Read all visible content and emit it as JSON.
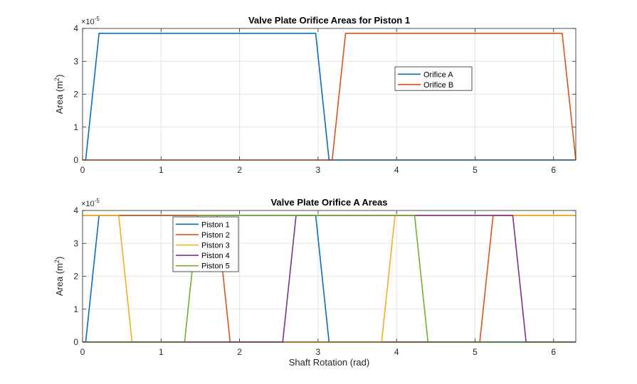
{
  "window": {},
  "chart_data": [
    {
      "type": "line",
      "title": "Valve Plate Orifice Areas for Piston 1",
      "xlabel": "",
      "ylabel": "Area  (m",
      "ylabel_sup": "2",
      "ylabel_tail": ")",
      "exponent_label": "×10",
      "exponent_power": "-5",
      "xlim": [
        0,
        6.2832
      ],
      "ylim": [
        0,
        4
      ],
      "xticks": [
        0,
        1,
        2,
        3,
        4,
        5,
        6
      ],
      "yticks": [
        0,
        1,
        2,
        3,
        4
      ],
      "grid": true,
      "legend_position": "upper-right-inside",
      "series": [
        {
          "name": "Orifice A",
          "color": "#0072BD",
          "x": [
            0,
            0.04,
            0.21,
            2.97,
            3.14,
            6.2832
          ],
          "y": [
            0,
            0,
            3.85,
            3.85,
            0,
            0
          ]
        },
        {
          "name": "Orifice B",
          "color": "#D95319",
          "x": [
            0,
            3.18,
            3.35,
            6.11,
            6.2832
          ],
          "y": [
            0,
            0,
            3.85,
            3.85,
            0
          ]
        }
      ]
    },
    {
      "type": "line",
      "title": "Valve Plate Orifice A Areas",
      "xlabel": "Shaft Rotation (rad)",
      "ylabel": "Area  (m",
      "ylabel_sup": "2",
      "ylabel_tail": ")",
      "exponent_label": "×10",
      "exponent_power": "-5",
      "xlim": [
        0,
        6.2832
      ],
      "ylim": [
        0,
        4
      ],
      "xticks": [
        0,
        1,
        2,
        3,
        4,
        5,
        6
      ],
      "yticks": [
        0,
        1,
        2,
        3,
        4
      ],
      "grid": true,
      "legend_position": "upper-left-inside",
      "series": [
        {
          "name": "Piston 1",
          "color": "#0072BD",
          "x": [
            0,
            0.04,
            0.21,
            2.97,
            3.14,
            6.2832
          ],
          "y": [
            0,
            0,
            3.85,
            3.85,
            0,
            0
          ]
        },
        {
          "name": "Piston 2",
          "color": "#D95319",
          "x": [
            0,
            1.71,
            1.88,
            5.06,
            5.23,
            6.2832
          ],
          "y": [
            3.85,
            3.85,
            0,
            0,
            3.85,
            3.85
          ]
        },
        {
          "name": "Piston 3",
          "color": "#EDB120",
          "x": [
            0,
            0.46,
            0.63,
            3.81,
            3.98,
            6.2832
          ],
          "y": [
            3.85,
            3.85,
            0,
            0,
            3.85,
            3.85
          ]
        },
        {
          "name": "Piston 4",
          "color": "#7E2F8E",
          "x": [
            0,
            2.55,
            2.72,
            5.48,
            5.65,
            6.2832
          ],
          "y": [
            0,
            0,
            3.85,
            3.85,
            0,
            0
          ]
        },
        {
          "name": "Piston 5",
          "color": "#77AC30",
          "x": [
            0,
            1.3,
            1.47,
            4.23,
            4.4,
            6.2832
          ],
          "y": [
            0,
            0,
            3.85,
            3.85,
            0,
            0
          ]
        }
      ]
    }
  ]
}
